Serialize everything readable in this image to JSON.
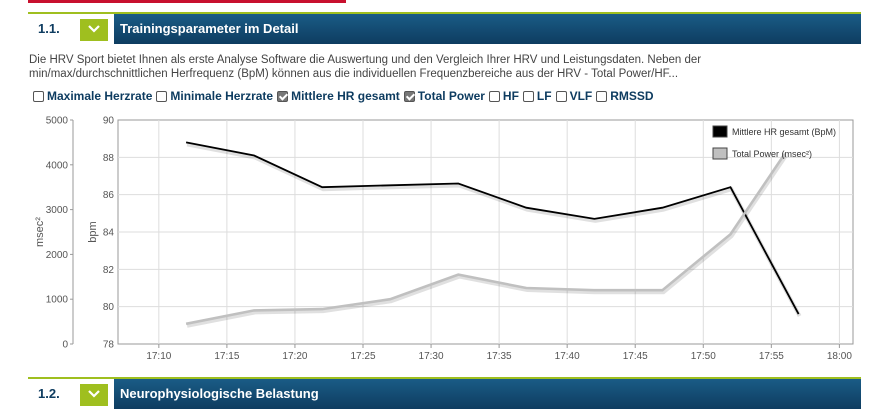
{
  "section1": {
    "number": "1.1.",
    "title": "Trainingsparameter im Detail"
  },
  "section2": {
    "number": "1.2.",
    "title": "Neurophysiologische Belastung"
  },
  "description": "Die HRV Sport bietet Ihnen als erste Analyse Software die Auswertung und den Vergleich Ihrer HRV und Leistungsdaten. Neben der min/max/durchschnittlichen Herfrequenz (BpM) können aus die individuellen Frequenzbereiche aus der HRV - Total Power/HF...",
  "checkboxes": [
    {
      "label": "Maximale Herzrate",
      "checked": false
    },
    {
      "label": "Minimale Herzrate",
      "checked": false
    },
    {
      "label": "Mittlere HR gesamt",
      "checked": true
    },
    {
      "label": "Total Power",
      "checked": true
    },
    {
      "label": "HF",
      "checked": false
    },
    {
      "label": "LF",
      "checked": false
    },
    {
      "label": "VLF",
      "checked": false
    },
    {
      "label": "RMSSD",
      "checked": false
    }
  ],
  "colors": {
    "accent": "#9fbf1f",
    "header": "#0e3c60",
    "hr_line": "#000000",
    "tp_line": "#c0c0c0"
  },
  "chart_data": {
    "type": "line",
    "x_ticks": [
      "17:10",
      "17:15",
      "17:20",
      "17:25",
      "17:30",
      "17:35",
      "17:40",
      "17:45",
      "17:50",
      "17:55",
      "18:00"
    ],
    "xlim": [
      "17:07",
      "18:01"
    ],
    "left_axis": {
      "label": "msec²",
      "ticks": [
        0,
        1000,
        2000,
        3000,
        4000,
        5000
      ],
      "lim": [
        0,
        5000
      ]
    },
    "right_axis": {
      "label": "bpm",
      "ticks": [
        78,
        80,
        82,
        84,
        86,
        88,
        90
      ],
      "lim": [
        78,
        90
      ]
    },
    "grid": true,
    "legend_position": "top-right",
    "series": [
      {
        "name": "Mittlere HR gesamt (BpM)",
        "axis": "bpm",
        "x": [
          "17:12",
          "17:17",
          "17:22",
          "17:27",
          "17:32",
          "17:37",
          "17:42",
          "17:47",
          "17:52",
          "17:57"
        ],
        "y": [
          88.8,
          88.1,
          86.4,
          86.5,
          86.6,
          85.3,
          84.7,
          85.3,
          86.4,
          79.6
        ]
      },
      {
        "name": "Total Power (msec²)",
        "axis": "msec²",
        "x": [
          "17:12",
          "17:17",
          "17:22",
          "17:27",
          "17:32",
          "17:37",
          "17:42",
          "17:47",
          "17:52",
          "17:56"
        ],
        "y": [
          450,
          750,
          780,
          1000,
          1550,
          1250,
          1200,
          1200,
          2450,
          4250
        ]
      }
    ]
  }
}
